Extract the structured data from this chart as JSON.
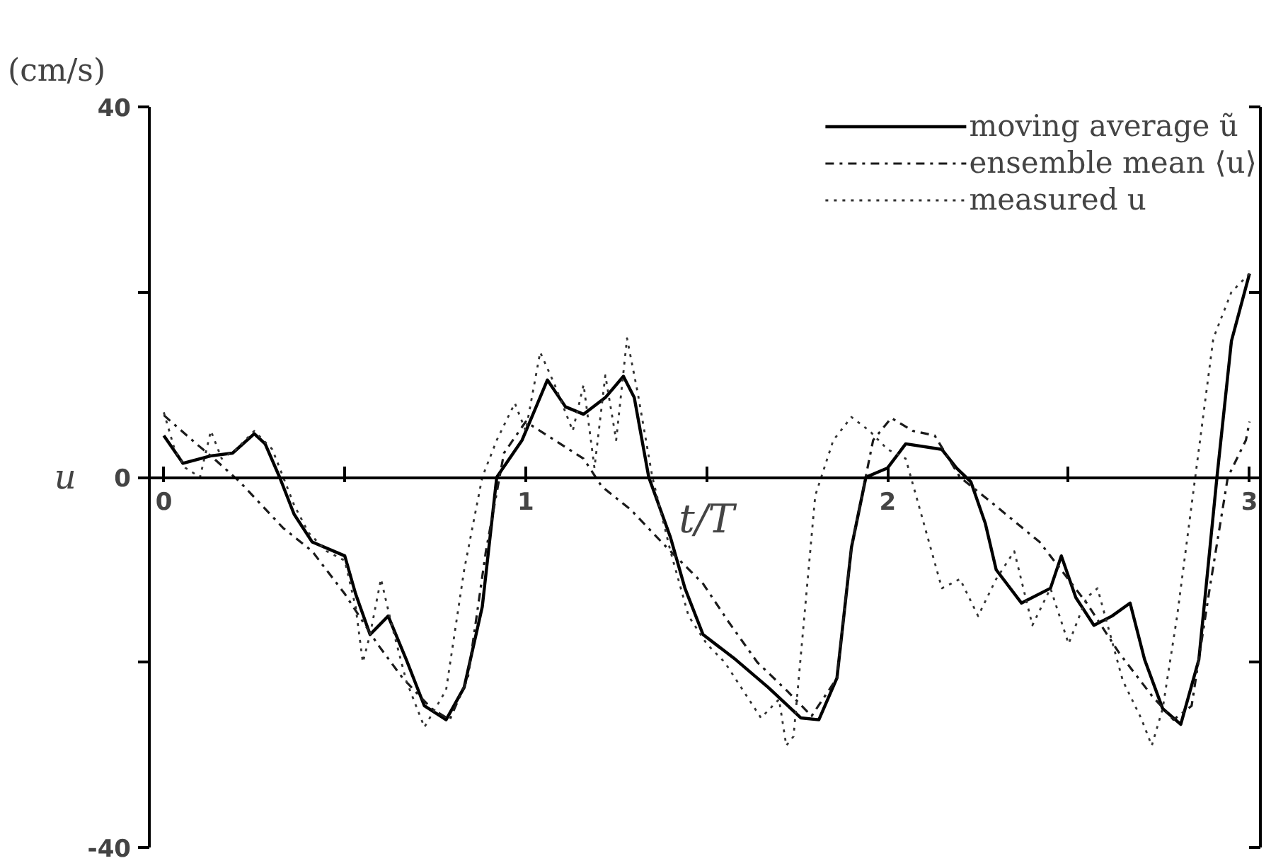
{
  "chart_data": {
    "type": "line",
    "ylabel": "u",
    "xlabel": "t/T",
    "annotations": [
      "(cm/s)"
    ],
    "xlim": [
      -0.04,
      3.03
    ],
    "ylim": [
      -40,
      40
    ],
    "xticks": [
      0,
      {
        "value": 0.5,
        "label": null
      },
      1,
      {
        "value": 1.5,
        "label": null
      },
      2,
      {
        "value": 2.5,
        "label": null
      },
      3
    ],
    "yticks": [
      -40,
      {
        "value": -20,
        "label": null
      },
      0,
      {
        "value": 20,
        "label": null
      },
      40
    ],
    "grid": false,
    "legend": "top right",
    "marker": "none",
    "series": [
      {
        "name": "moving average ũ",
        "color": "#000000",
        "line_style": "solid",
        "x": [
          0,
          0.053,
          0.13,
          0.19,
          0.25,
          0.28,
          0.32,
          0.36,
          0.41,
          0.5,
          0.53,
          0.57,
          0.62,
          0.67,
          0.72,
          0.78,
          0.83,
          0.88,
          0.92,
          0.99,
          1.06,
          1.11,
          1.16,
          1.22,
          1.27,
          1.3,
          1.34,
          1.4,
          1.44,
          1.49,
          1.58,
          1.67,
          1.76,
          1.81,
          1.86,
          1.9,
          1.94,
          2.0,
          2.05,
          2.15,
          2.19,
          2.23,
          2.27,
          2.3,
          2.37,
          2.45,
          2.48,
          2.52,
          2.57,
          2.62,
          2.67,
          2.71,
          2.76,
          2.81,
          2.86,
          2.91,
          2.95,
          3.0
        ],
        "values": [
          4.5,
          1.5,
          2.3,
          2.6,
          4.7,
          3.6,
          0,
          -4,
          -7,
          -8.5,
          -12.6,
          -17,
          -15,
          -19.7,
          -24.7,
          -26.2,
          -22.7,
          -14,
          0,
          4,
          10.5,
          7.6,
          6.8,
          8.6,
          10.9,
          8.6,
          0,
          -6.5,
          -12,
          -17,
          -19.7,
          -22.7,
          -26,
          -26.2,
          -21.7,
          -7.6,
          0,
          1,
          3.6,
          3,
          1,
          -0.5,
          -5,
          -10,
          -13.6,
          -12,
          -8.5,
          -13,
          -16,
          -15,
          -13.6,
          -19.7,
          -25,
          -26.7,
          -19.7,
          0,
          14.7,
          22
        ]
      },
      {
        "name": "ensemble mean ⟨u⟩",
        "color": "#1a1a1a",
        "line_style": "dashdot",
        "x": [
          0,
          0.09,
          0.13,
          0.21,
          0.33,
          0.41,
          0.5,
          0.59,
          0.66,
          0.74,
          0.79,
          0.84,
          0.89,
          0.94,
          1.0,
          1.06,
          1.16,
          1.21,
          1.29,
          1.39,
          1.49,
          1.56,
          1.64,
          1.72,
          1.79,
          1.86,
          1.9,
          1.96,
          2.01,
          2.07,
          2.13,
          2.2,
          2.28,
          2.42,
          2.55,
          2.64,
          2.73,
          2.79,
          2.84,
          2.89,
          2.94,
          2.99,
          3.0
        ],
        "values": [
          6.7,
          3.6,
          2.3,
          -0.5,
          -5.5,
          -8,
          -12.6,
          -18,
          -21.7,
          -25,
          -26.2,
          -21.7,
          -8,
          2.6,
          6,
          4.5,
          2,
          -1,
          -3.5,
          -7.6,
          -11.5,
          -15.6,
          -20,
          -23,
          -25.8,
          -21.7,
          -7.6,
          4,
          6.4,
          5,
          4.5,
          0,
          -2.5,
          -7,
          -13.6,
          -19,
          -23.6,
          -26.2,
          -24.7,
          -12,
          0,
          4,
          6
        ]
      },
      {
        "name": "measured u",
        "color": "#333333",
        "line_style": "dotted",
        "x": [
          0,
          0.03,
          0.06,
          0.1,
          0.13,
          0.16,
          0.2,
          0.25,
          0.3,
          0.33,
          0.36,
          0.4,
          0.45,
          0.5,
          0.53,
          0.55,
          0.57,
          0.6,
          0.63,
          0.67,
          0.72,
          0.78,
          0.83,
          0.88,
          0.92,
          0.97,
          1.0,
          1.04,
          1.08,
          1.13,
          1.16,
          1.19,
          1.22,
          1.25,
          1.28,
          1.31,
          1.35,
          1.4,
          1.45,
          1.5,
          1.55,
          1.6,
          1.65,
          1.7,
          1.72,
          1.74,
          1.77,
          1.8,
          1.85,
          1.9,
          1.95,
          2.0,
          2.05,
          2.1,
          2.15,
          2.2,
          2.25,
          2.3,
          2.35,
          2.4,
          2.45,
          2.5,
          2.55,
          2.58,
          2.65,
          2.7,
          2.73,
          2.76,
          2.8,
          2.85,
          2.9,
          2.95,
          3.0
        ],
        "values": [
          7,
          3,
          1,
          0,
          5,
          2,
          3,
          5,
          3,
          0,
          -3,
          -6,
          -8,
          -9,
          -14,
          -20,
          -17,
          -11,
          -16,
          -22,
          -27,
          -23,
          -10,
          0,
          4,
          8,
          5,
          13.5,
          10,
          5,
          10,
          1,
          11,
          4,
          15,
          9,
          0,
          -8,
          -15,
          -18,
          -20,
          -23,
          -26,
          -24,
          -29,
          -28,
          -15,
          -2,
          4,
          6.5,
          5,
          3,
          2,
          -5,
          -12,
          -11,
          -15,
          -11,
          -8,
          -16,
          -12,
          -18,
          -13,
          -12,
          -22,
          -26,
          -29,
          -25,
          -15,
          0,
          15,
          20,
          22
        ]
      }
    ]
  }
}
